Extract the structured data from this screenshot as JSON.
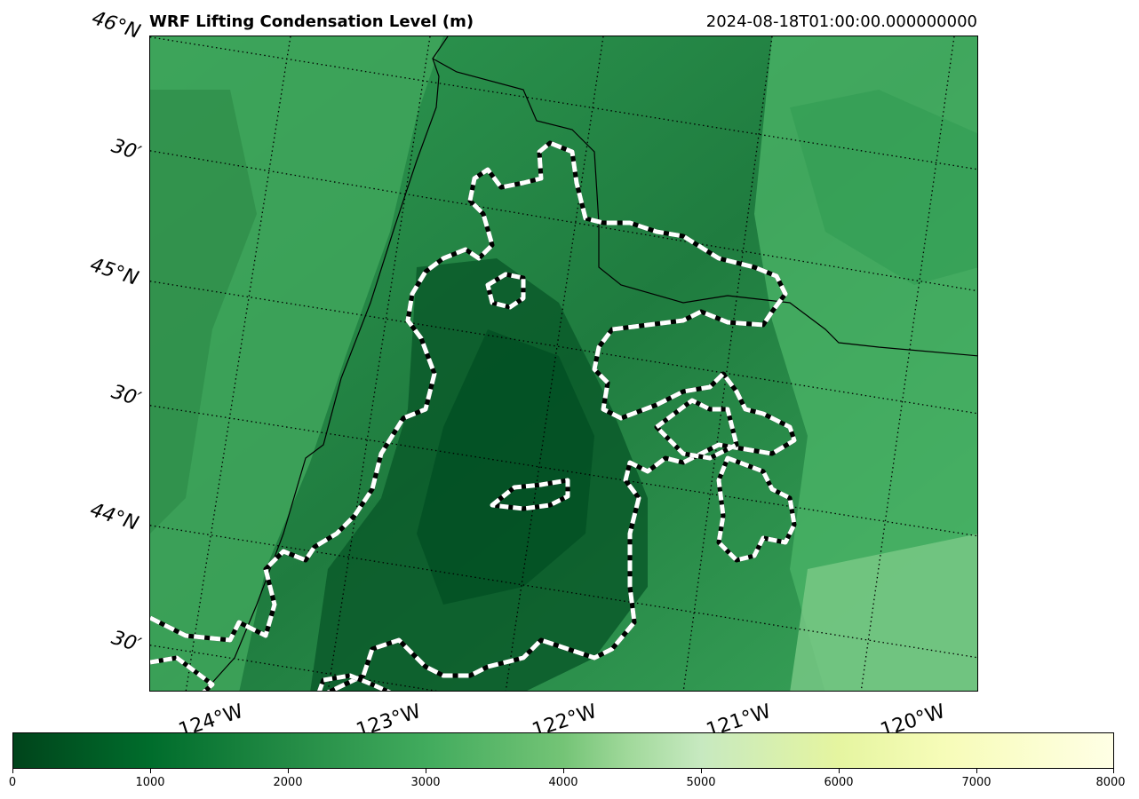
{
  "title": "WRF Lifting Condensation Level (m)",
  "timestamp": "2024-08-18T01:00:00.000000000",
  "lat_labels": [
    "46°N",
    "30′",
    "45°N",
    "30′",
    "44°N",
    "30′"
  ],
  "lon_labels": [
    "124°W",
    "123°W",
    "122°W",
    "121°W",
    "120°W"
  ],
  "colorbar": {
    "ticks": [
      "0",
      "1000",
      "2000",
      "3000",
      "4000",
      "5000",
      "6000",
      "7000",
      "8000"
    ],
    "min": 0,
    "max": 8000,
    "colormap": "YlGn_r"
  },
  "colors": {
    "dark_green": "#00441b",
    "mid_green": "#238b45",
    "light_green": "#41ab5d",
    "pale_green": "#74c476",
    "contour_white": "#ffffff",
    "contour_black": "#000000"
  }
}
